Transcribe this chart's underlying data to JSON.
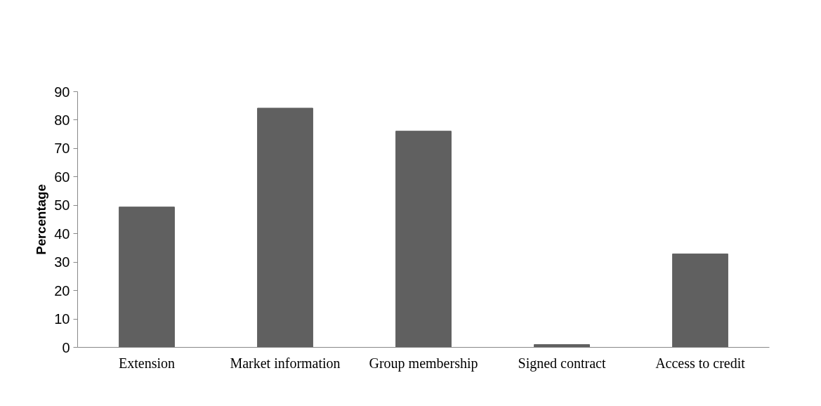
{
  "chart_data": {
    "type": "bar",
    "ylabel": "Percentage",
    "categories": [
      "Extension",
      "Market information",
      "Group membership",
      "Signed contract",
      "Access to credit"
    ],
    "values": [
      49.4,
      84.2,
      76.1,
      1.0,
      32.9
    ],
    "color": "#606060",
    "ylim": [
      0,
      90
    ],
    "yticks": [
      0,
      10,
      20,
      30,
      40,
      50,
      60,
      70,
      80,
      90
    ],
    "grid": false
  }
}
